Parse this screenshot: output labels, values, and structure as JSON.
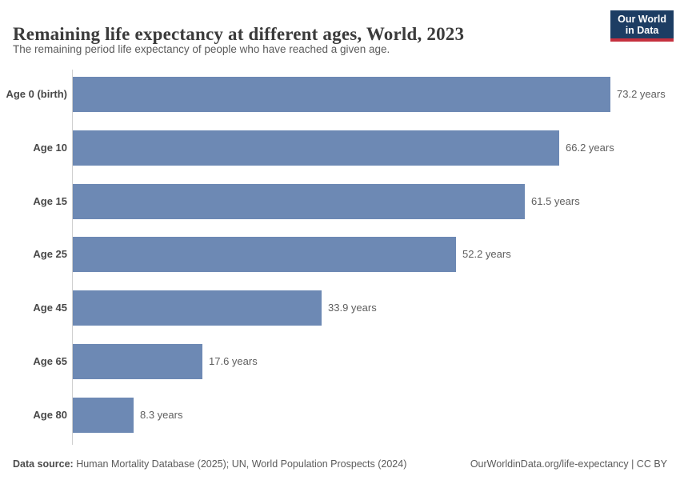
{
  "header": {
    "title": "Remaining life expectancy at different ages, World, 2023",
    "subtitle": "The remaining period life expectancy of people who have reached a given age.",
    "logo": {
      "line1": "Our World",
      "line2": "in Data",
      "bg_color": "#1d3d63",
      "accent_color": "#c5303e"
    }
  },
  "chart_data": {
    "type": "bar",
    "orientation": "horizontal",
    "title": "Remaining life expectancy at different ages, World, 2023",
    "subtitle": "The remaining period life expectancy of people who have reached a given age.",
    "categories": [
      "Age 0 (birth)",
      "Age 10",
      "Age 15",
      "Age 25",
      "Age 45",
      "Age 65",
      "Age 80"
    ],
    "values": [
      73.2,
      66.2,
      61.5,
      52.2,
      33.9,
      17.6,
      8.3
    ],
    "value_labels": [
      "73.2 years",
      "66.2 years",
      "61.5 years",
      "52.2 years",
      "33.9 years",
      "17.6 years",
      "8.3 years"
    ],
    "unit": "years",
    "xlim": [
      0,
      73.2
    ],
    "grid": false,
    "legend": "none",
    "bar_color": "#6d89b4"
  },
  "footer": {
    "datasource_label": "Data source:",
    "datasource_text": " Human Mortality Database (2025); UN, World Population Prospects (2024)",
    "link_text": "OurWorldinData.org/life-expectancy | CC BY"
  }
}
